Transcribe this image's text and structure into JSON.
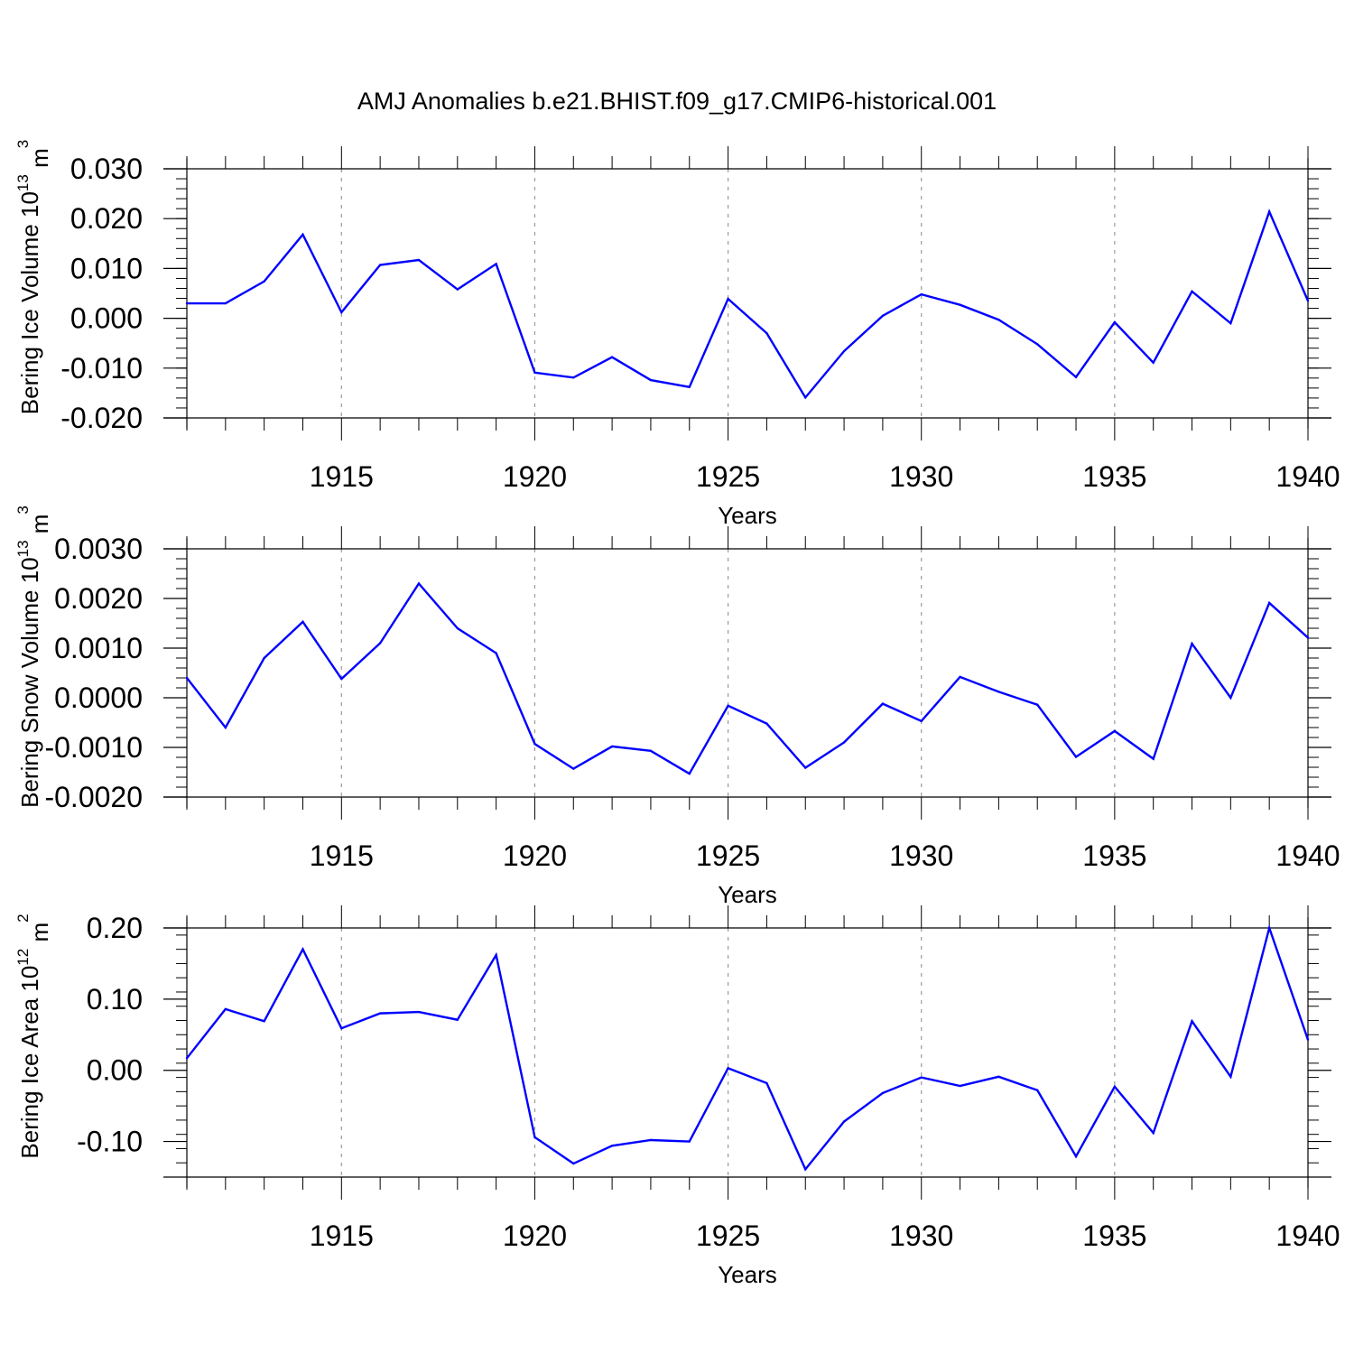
{
  "title": "AMJ Anomalies b.e21.BHIST.f09_g17.CMIP6-historical.001",
  "colors": {
    "series": "#0000ff",
    "axes": "#000000",
    "grid": "#999999"
  },
  "chart_data": [
    {
      "type": "line",
      "xlabel": "Years",
      "ylabel": "Bering Ice Volume 10",
      "ylabel_exp": "13",
      "ylabel_unit": " m",
      "ylabel_unit_exp": "3",
      "xlim": [
        1911,
        1940
      ],
      "ylim": [
        -0.02,
        0.03
      ],
      "yticks": [
        -0.02,
        -0.01,
        0.0,
        0.01,
        0.02,
        0.03
      ],
      "ytick_labels": [
        "-0.020",
        "-0.010",
        "0.000",
        "0.010",
        "0.020",
        "0.030"
      ],
      "xticks": [
        1915,
        1920,
        1925,
        1930,
        1935,
        1940
      ],
      "xtick_labels": [
        "1915",
        "1920",
        "1925",
        "1930",
        "1935",
        "1940"
      ],
      "grid": "vertical dashed at labeled years",
      "x": [
        1911,
        1912,
        1913,
        1914,
        1915,
        1916,
        1917,
        1918,
        1919,
        1920,
        1921,
        1922,
        1923,
        1924,
        1925,
        1926,
        1927,
        1928,
        1929,
        1930,
        1931,
        1932,
        1933,
        1934,
        1935,
        1936,
        1937,
        1938,
        1939,
        1940
      ],
      "values": [
        0.003,
        0.003,
        0.0074,
        0.0168,
        0.0012,
        0.0107,
        0.0117,
        0.0058,
        0.0109,
        -0.0109,
        -0.0119,
        -0.0078,
        -0.0124,
        -0.0138,
        0.0039,
        -0.003,
        -0.0159,
        -0.0066,
        0.0005,
        0.0048,
        0.0027,
        -0.0003,
        -0.0052,
        -0.0118,
        -0.0008,
        -0.0089,
        0.0054,
        -0.001,
        0.0214,
        0.0035
      ]
    },
    {
      "type": "line",
      "xlabel": "Years",
      "ylabel": "Bering Snow Volume 10",
      "ylabel_exp": "13",
      "ylabel_unit": " m",
      "ylabel_unit_exp": "3",
      "xlim": [
        1911,
        1940
      ],
      "ylim": [
        -0.002,
        0.003
      ],
      "yticks": [
        -0.002,
        -0.001,
        0.0,
        0.001,
        0.002,
        0.003
      ],
      "ytick_labels": [
        "-0.0020",
        "-0.0010",
        "0.0000",
        "0.0010",
        "0.0020",
        "0.0030"
      ],
      "xticks": [
        1915,
        1920,
        1925,
        1930,
        1935,
        1940
      ],
      "xtick_labels": [
        "1915",
        "1920",
        "1925",
        "1930",
        "1935",
        "1940"
      ],
      "grid": "vertical dashed at labeled years",
      "x": [
        1911,
        1912,
        1913,
        1914,
        1915,
        1916,
        1917,
        1918,
        1919,
        1920,
        1921,
        1922,
        1923,
        1924,
        1925,
        1926,
        1927,
        1928,
        1929,
        1930,
        1931,
        1932,
        1933,
        1934,
        1935,
        1936,
        1937,
        1938,
        1939,
        1940
      ],
      "values": [
        0.0004,
        -0.0006,
        0.0008,
        0.00153,
        0.00038,
        0.0011,
        0.0023,
        0.0014,
        0.0009,
        -0.00093,
        -0.00143,
        -0.00098,
        -0.00107,
        -0.00153,
        -0.00016,
        -0.00052,
        -0.00141,
        -0.0009,
        -0.00012,
        -0.00047,
        0.00042,
        0.00012,
        -0.00014,
        -0.00119,
        -0.00067,
        -0.00123,
        0.00109,
        0.0,
        0.00191,
        0.00121
      ]
    },
    {
      "type": "line",
      "xlabel": "Years",
      "ylabel": "Bering Ice Area 10",
      "ylabel_exp": "12",
      "ylabel_unit": " m",
      "ylabel_unit_exp": "2",
      "xlim": [
        1911,
        1940
      ],
      "ylim": [
        -0.15,
        0.2
      ],
      "yticks": [
        -0.1,
        0.0,
        0.1,
        0.2
      ],
      "ytick_labels": [
        "-0.10",
        "0.00",
        "0.10",
        "0.20"
      ],
      "xticks": [
        1915,
        1920,
        1925,
        1930,
        1935,
        1940
      ],
      "xtick_labels": [
        "1915",
        "1920",
        "1925",
        "1930",
        "1935",
        "1940"
      ],
      "grid": "vertical dashed at labeled years",
      "x": [
        1911,
        1912,
        1913,
        1914,
        1915,
        1916,
        1917,
        1918,
        1919,
        1920,
        1921,
        1922,
        1923,
        1924,
        1925,
        1926,
        1927,
        1928,
        1929,
        1930,
        1931,
        1932,
        1933,
        1934,
        1935,
        1936,
        1937,
        1938,
        1939,
        1940
      ],
      "values": [
        0.017,
        0.086,
        0.069,
        0.17,
        0.059,
        0.08,
        0.082,
        0.071,
        0.162,
        -0.094,
        -0.131,
        -0.106,
        -0.098,
        -0.1,
        0.003,
        -0.018,
        -0.139,
        -0.072,
        -0.032,
        -0.01,
        -0.022,
        -0.009,
        -0.028,
        -0.121,
        -0.023,
        -0.088,
        0.069,
        -0.009,
        0.2,
        0.043
      ]
    }
  ]
}
